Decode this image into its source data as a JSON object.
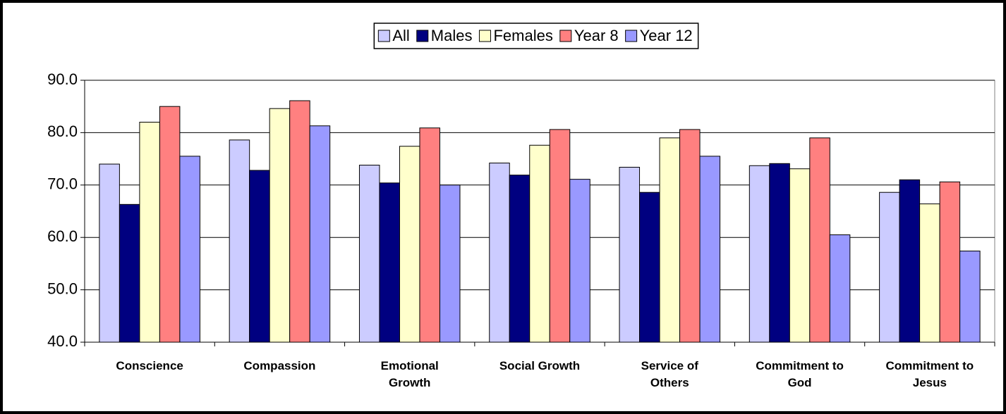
{
  "chart_data": {
    "type": "bar",
    "categories": [
      "Conscience",
      "Compassion",
      "Emotional Growth",
      "Social Growth",
      "Service of Others",
      "Commitment to God",
      "Commitment to Jesus"
    ],
    "series": [
      {
        "name": "All",
        "color": "#ccccff",
        "values": [
          74.0,
          78.6,
          73.8,
          74.2,
          73.4,
          73.7,
          68.6
        ]
      },
      {
        "name": "Males",
        "color": "#000080",
        "values": [
          66.3,
          72.8,
          70.4,
          71.9,
          68.6,
          74.1,
          71.0
        ]
      },
      {
        "name": "Females",
        "color": "#ffffcc",
        "values": [
          82.0,
          84.6,
          77.4,
          77.6,
          79.0,
          73.1,
          66.4
        ]
      },
      {
        "name": "Year 8",
        "color": "#ff8080",
        "values": [
          85.0,
          86.1,
          80.9,
          80.6,
          80.6,
          79.0,
          70.6
        ]
      },
      {
        "name": "Year 12",
        "color": "#9999ff",
        "values": [
          75.5,
          81.3,
          70.0,
          71.1,
          75.5,
          60.5,
          57.4
        ]
      }
    ],
    "ylim": [
      40,
      90
    ],
    "yticks": [
      {
        "value": 40,
        "label": "40.0"
      },
      {
        "value": 50,
        "label": "50.0"
      },
      {
        "value": 60,
        "label": "60.0"
      },
      {
        "value": 70,
        "label": "70.0"
      },
      {
        "value": 80,
        "label": "80.0"
      },
      {
        "value": 90,
        "label": "90.0"
      }
    ],
    "grid": true,
    "legend": "top"
  }
}
